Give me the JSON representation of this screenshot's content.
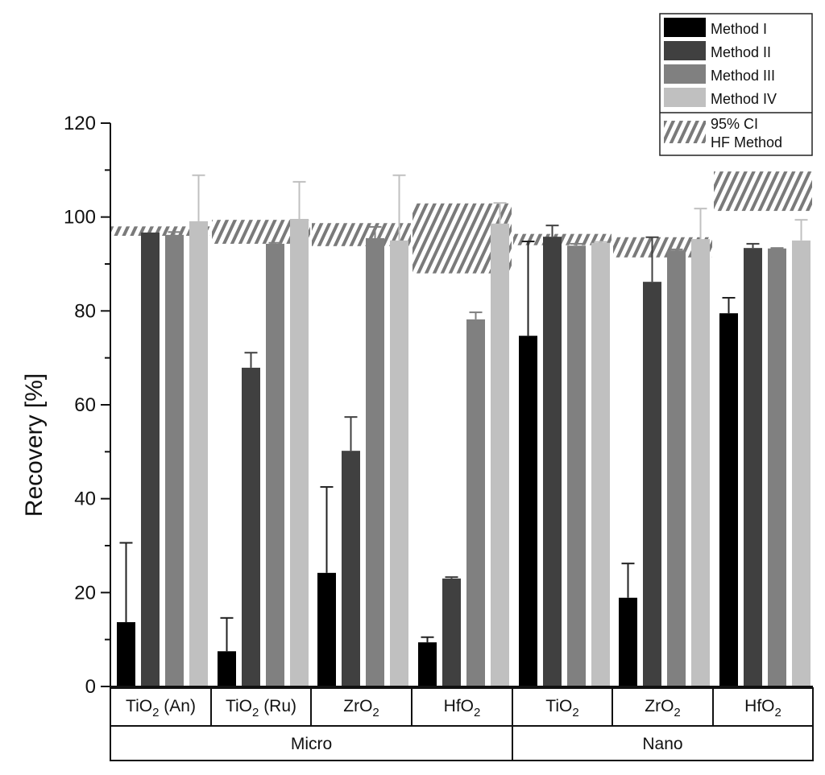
{
  "chart_data": {
    "type": "bar",
    "title": "",
    "xlabel": "",
    "ylabel": "Recovery [%]",
    "ylim": [
      0,
      120
    ],
    "yticks": [
      0,
      20,
      40,
      60,
      80,
      100,
      120
    ],
    "minor_tick_step": 10,
    "grid": false,
    "legend_position": "top-right",
    "groups": [
      {
        "label": "Micro",
        "categories": [
          0,
          1,
          2,
          3
        ]
      },
      {
        "label": "Nano",
        "categories": [
          4,
          5,
          6
        ]
      }
    ],
    "categories": [
      {
        "base": "TiO",
        "sub": "2",
        "suffix": " (An)"
      },
      {
        "base": "TiO",
        "sub": "2",
        "suffix": " (Ru)"
      },
      {
        "base": "ZrO",
        "sub": "2",
        "suffix": ""
      },
      {
        "base": "HfO",
        "sub": "2",
        "suffix": ""
      },
      {
        "base": "TiO",
        "sub": "2",
        "suffix": ""
      },
      {
        "base": "ZrO",
        "sub": "2",
        "suffix": ""
      },
      {
        "base": "HfO",
        "sub": "2",
        "suffix": ""
      }
    ],
    "series": [
      {
        "name": "Method I",
        "color": "#000000",
        "values": [
          13.7,
          7.5,
          24.2,
          9.4,
          74.7,
          18.9,
          79.5
        ],
        "error_upper": [
          30.6,
          14.6,
          42.5,
          10.5,
          94.8,
          26.2,
          82.8
        ]
      },
      {
        "name": "Method II",
        "color": "#404040",
        "values": [
          96.7,
          67.9,
          50.2,
          23.0,
          95.8,
          86.2,
          93.4
        ],
        "error_upper": [
          96.7,
          71.1,
          57.4,
          23.3,
          98.2,
          95.7,
          94.3
        ]
      },
      {
        "name": "Method III",
        "color": "#808080",
        "values": [
          96.2,
          94.3,
          95.5,
          78.2,
          93.9,
          92.9,
          93.3
        ],
        "error_upper": [
          96.8,
          94.5,
          97.9,
          79.7,
          94.3,
          93.1,
          93.4
        ]
      },
      {
        "name": "Method IV",
        "color": "#c0c0c0",
        "values": [
          99.1,
          99.6,
          95.0,
          98.6,
          94.5,
          95.3,
          95.0
        ],
        "error_upper": [
          108.9,
          107.5,
          108.9,
          103.0,
          94.7,
          101.8,
          99.4
        ]
      }
    ],
    "ci_bands": {
      "name_line1": "95% CI",
      "name_line2": "HF Method",
      "color": "#7a7a7a",
      "ranges": [
        [
          96.0,
          98.0
        ],
        [
          94.3,
          99.4
        ],
        [
          93.8,
          98.7
        ],
        [
          88.0,
          102.9
        ],
        [
          94.0,
          96.4
        ],
        [
          91.4,
          95.7
        ],
        [
          101.3,
          109.7
        ]
      ]
    }
  }
}
